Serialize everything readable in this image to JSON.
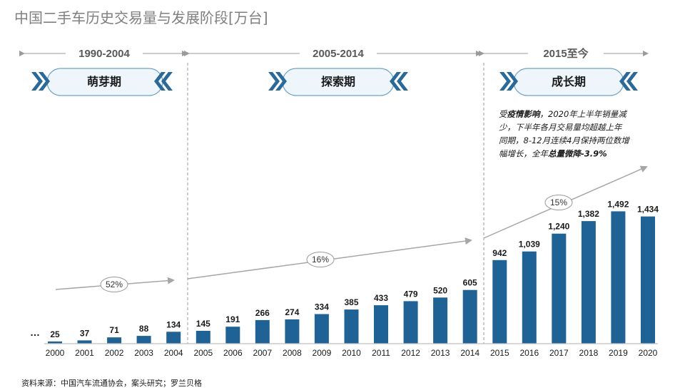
{
  "title": "中国二手车历史交易量与发展阶段[万台]",
  "eras": [
    {
      "label": "1990-2004",
      "stage": "萌芽期"
    },
    {
      "label": "2005-2014",
      "stage": "探索期"
    },
    {
      "label": "2015至今",
      "stage": "成长期"
    }
  ],
  "note": {
    "lines": [
      [
        {
          "t": "受",
          "b": false
        },
        {
          "t": "疫情影响",
          "b": true
        },
        {
          "t": "，2020年上半年销量减",
          "b": false
        }
      ],
      [
        {
          "t": "少，下半年各月交易量均超越上年",
          "b": false
        }
      ],
      [
        {
          "t": "同期，8-12月连续4月保持两位数增",
          "b": false
        }
      ],
      [
        {
          "t": "幅增长，全年",
          "b": false
        },
        {
          "t": "总量微降-3.9%",
          "b": true
        }
      ]
    ]
  },
  "leading_ellipsis": "…",
  "growth_rates": [
    "52%",
    "16%",
    "15%"
  ],
  "source": "资料来源：中国汽车流通协会，案头研究；罗兰贝格",
  "colors": {
    "bar": "#1f6396",
    "accent": "#2a6a9a",
    "arrow": "#a6a6a6",
    "pill_fill": "#eef6fb",
    "pill_border": "#6fa3c7"
  },
  "chart_data": {
    "type": "bar",
    "title": "中国二手车历史交易量与发展阶段[万台]",
    "categories": [
      "2000",
      "2001",
      "2002",
      "2003",
      "2004",
      "2005",
      "2006",
      "2007",
      "2008",
      "2009",
      "2010",
      "2011",
      "2012",
      "2013",
      "2014",
      "2015",
      "2016",
      "2017",
      "2018",
      "2019",
      "2020"
    ],
    "values": [
      25,
      37,
      71,
      88,
      134,
      145,
      191,
      266,
      274,
      334,
      385,
      433,
      479,
      520,
      605,
      942,
      1039,
      1240,
      1382,
      1492,
      1434
    ],
    "value_labels": [
      "25",
      "37",
      "71",
      "88",
      "134",
      "145",
      "191",
      "266",
      "274",
      "334",
      "385",
      "433",
      "479",
      "520",
      "605",
      "942",
      "1,039",
      "1,240",
      "1,382",
      "1,492",
      "1,434"
    ],
    "ylim": [
      0,
      1600
    ],
    "grid": false,
    "xlabel": "",
    "ylabel": ""
  }
}
